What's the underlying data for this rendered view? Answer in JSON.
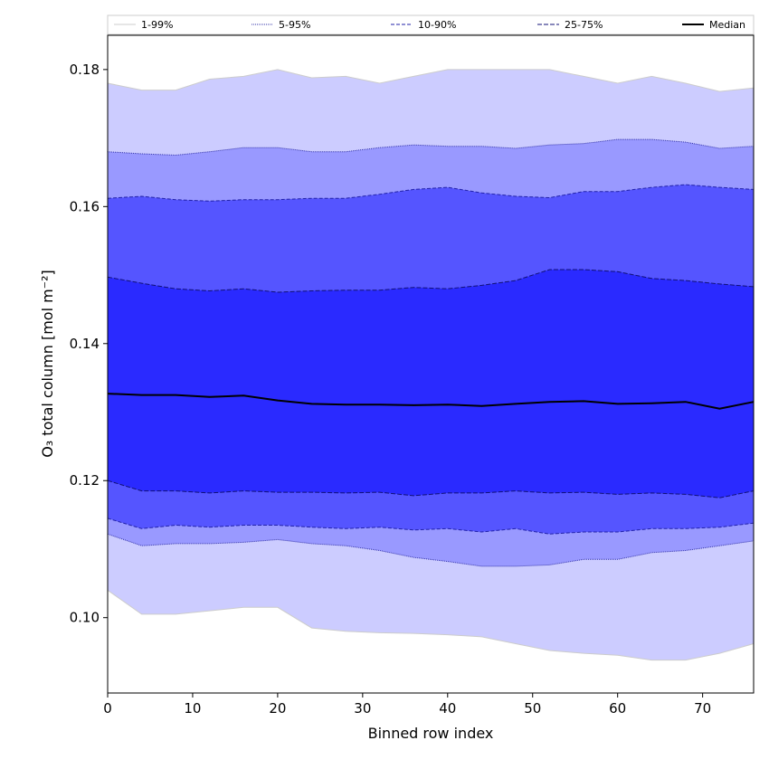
{
  "chart_data": {
    "type": "area",
    "title": "",
    "xlabel": "Binned row index",
    "ylabel": "O₃ total column [mol m⁻²]",
    "xlim": [
      0,
      76
    ],
    "ylim": [
      0.089,
      0.185
    ],
    "xticks": [
      0,
      10,
      20,
      30,
      40,
      50,
      60,
      70
    ],
    "xtick_labels": [
      "0",
      "10",
      "20",
      "30",
      "40",
      "50",
      "60",
      "70"
    ],
    "yticks": [
      0.1,
      0.12,
      0.14,
      0.16,
      0.18
    ],
    "ytick_labels": [
      "0.10",
      "0.12",
      "0.14",
      "0.16",
      "0.18"
    ],
    "x": [
      0,
      4,
      8,
      12,
      16,
      20,
      24,
      28,
      32,
      36,
      40,
      44,
      48,
      52,
      56,
      60,
      64,
      68,
      72,
      76
    ],
    "bands": [
      {
        "name": "1-99%",
        "color": "#ccccff",
        "line_color": "#cccccc",
        "dash": "",
        "upper": [
          0.178,
          0.177,
          0.177,
          0.1786,
          0.179,
          0.18,
          0.1788,
          0.179,
          0.178,
          0.179,
          0.18,
          0.18,
          0.18,
          0.18,
          0.179,
          0.178,
          0.179,
          0.178,
          0.1768,
          0.1773
        ],
        "lower": [
          0.104,
          0.1005,
          0.1005,
          0.101,
          0.1015,
          0.1015,
          0.0985,
          0.098,
          0.0978,
          0.0977,
          0.0975,
          0.0972,
          0.0962,
          0.0952,
          0.0948,
          0.0945,
          0.0938,
          0.0938,
          0.0948,
          0.0962
        ]
      },
      {
        "name": "5-95%",
        "color": "#9999ff",
        "line_color": "#3333aa",
        "dash": "1,1",
        "upper": [
          0.168,
          0.1677,
          0.1675,
          0.168,
          0.1686,
          0.1686,
          0.168,
          0.168,
          0.1686,
          0.169,
          0.1688,
          0.1688,
          0.1685,
          0.169,
          0.1692,
          0.1698,
          0.1698,
          0.1694,
          0.1685,
          0.1688
        ],
        "lower": [
          0.1122,
          0.1105,
          0.1108,
          0.1108,
          0.111,
          0.1114,
          0.1108,
          0.1105,
          0.1098,
          0.1088,
          0.1082,
          0.1075,
          0.1075,
          0.1077,
          0.1085,
          0.1085,
          0.1095,
          0.1098,
          0.1105,
          0.1112
        ]
      },
      {
        "name": "10-90%",
        "color": "#5555ff",
        "line_color": "#2222aa",
        "dash": "4,2",
        "upper": [
          0.1612,
          0.1615,
          0.161,
          0.1608,
          0.161,
          0.161,
          0.1612,
          0.1612,
          0.1618,
          0.1625,
          0.1628,
          0.162,
          0.1615,
          0.1613,
          0.1622,
          0.1622,
          0.1628,
          0.1632,
          0.1628,
          0.1625
        ],
        "lower": [
          0.1145,
          0.113,
          0.1135,
          0.1132,
          0.1135,
          0.1135,
          0.1132,
          0.113,
          0.1132,
          0.1128,
          0.113,
          0.1125,
          0.113,
          0.1122,
          0.1125,
          0.1125,
          0.113,
          0.113,
          0.1132,
          0.1138
        ]
      },
      {
        "name": "25-75%",
        "color": "#2a2aff",
        "line_color": "#111177",
        "dash": "5,2",
        "upper": [
          0.1497,
          0.1488,
          0.148,
          0.1477,
          0.148,
          0.1475,
          0.1477,
          0.1478,
          0.1478,
          0.1482,
          0.148,
          0.1485,
          0.1492,
          0.1508,
          0.1508,
          0.1505,
          0.1495,
          0.1492,
          0.1487,
          0.1483
        ],
        "lower": [
          0.12,
          0.1185,
          0.1185,
          0.1182,
          0.1185,
          0.1183,
          0.1183,
          0.1182,
          0.1183,
          0.1178,
          0.1182,
          0.1182,
          0.1185,
          0.1182,
          0.1183,
          0.118,
          0.1182,
          0.118,
          0.1175,
          0.1185
        ]
      }
    ],
    "median": {
      "name": "Median",
      "color": "#000000",
      "values": [
        0.1327,
        0.1325,
        0.1325,
        0.1322,
        0.1324,
        0.1317,
        0.1312,
        0.1311,
        0.1311,
        0.131,
        0.1311,
        0.1309,
        0.1312,
        0.1315,
        0.1316,
        0.1312,
        0.1313,
        0.1315,
        0.1305,
        0.1315
      ]
    },
    "legend": [
      "1-99%",
      "5-95%",
      "10-90%",
      "25-75%",
      "Median"
    ],
    "legend_position": "top",
    "grid": false
  }
}
